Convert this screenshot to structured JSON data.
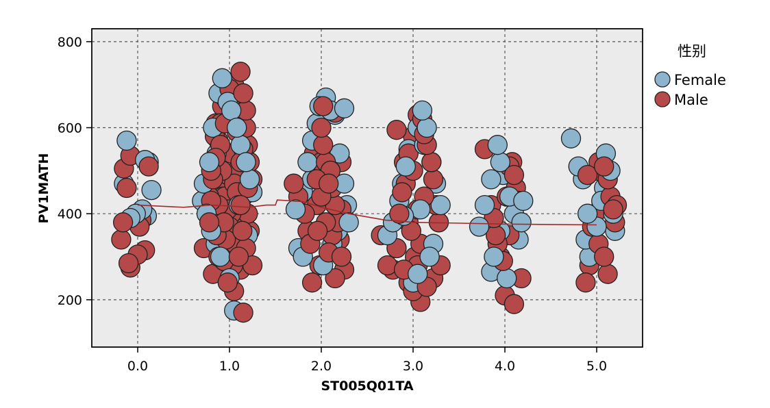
{
  "chart_data": {
    "type": "scatter",
    "title": "",
    "xlabel": "ST005Q01TA",
    "ylabel": "PV1MATH",
    "xlim": [
      -0.5,
      5.5
    ],
    "ylim": [
      90,
      830
    ],
    "x_ticks": [
      "0.0",
      "1.0",
      "2.0",
      "3.0",
      "4.0",
      "5.0"
    ],
    "y_ticks": [
      "200",
      "400",
      "600",
      "800"
    ],
    "grid": true,
    "legend": {
      "title": "性别",
      "placement": "right"
    },
    "series": [
      {
        "name": "Female",
        "color": "#8cb4cc",
        "points": [
          [
            -0.12,
            570
          ],
          [
            -0.15,
            470
          ],
          [
            0.08,
            525
          ],
          [
            0.12,
            520
          ],
          [
            0.15,
            455
          ],
          [
            0.05,
            410
          ],
          [
            -0.02,
            400
          ],
          [
            -0.08,
            390
          ],
          [
            0.1,
            395
          ],
          [
            0.72,
            470
          ],
          [
            0.78,
            520
          ],
          [
            0.82,
            600
          ],
          [
            0.88,
            680
          ],
          [
            0.92,
            715
          ],
          [
            0.95,
            700
          ],
          [
            0.98,
            660
          ],
          [
            1.02,
            640
          ],
          [
            1.08,
            600
          ],
          [
            1.12,
            560
          ],
          [
            1.18,
            520
          ],
          [
            1.22,
            480
          ],
          [
            1.25,
            450
          ],
          [
            0.75,
            400
          ],
          [
            0.8,
            360
          ],
          [
            0.85,
            330
          ],
          [
            0.9,
            300
          ],
          [
            1.05,
            290
          ],
          [
            1.15,
            320
          ],
          [
            1.2,
            350
          ],
          [
            1.0,
            250
          ],
          [
            1.05,
            175
          ],
          [
            0.93,
            440
          ],
          [
            1.1,
            420
          ],
          [
            1.0,
            380
          ],
          [
            0.86,
            540
          ],
          [
            1.16,
            600
          ],
          [
            0.7,
            430
          ],
          [
            1.72,
            410
          ],
          [
            1.8,
            450
          ],
          [
            1.85,
            520
          ],
          [
            1.9,
            570
          ],
          [
            1.95,
            610
          ],
          [
            1.98,
            650
          ],
          [
            2.05,
            670
          ],
          [
            2.1,
            640
          ],
          [
            2.15,
            630
          ],
          [
            2.25,
            645
          ],
          [
            2.2,
            540
          ],
          [
            2.25,
            470
          ],
          [
            2.28,
            420
          ],
          [
            2.3,
            380
          ],
          [
            1.75,
            320
          ],
          [
            1.8,
            300
          ],
          [
            2.02,
            280
          ],
          [
            2.12,
            330
          ],
          [
            1.9,
            480
          ],
          [
            2.18,
            360
          ],
          [
            2.1,
            500
          ],
          [
            2.72,
            350
          ],
          [
            2.78,
            380
          ],
          [
            2.85,
            430
          ],
          [
            2.88,
            470
          ],
          [
            2.92,
            510
          ],
          [
            2.95,
            550
          ],
          [
            3.05,
            600
          ],
          [
            3.1,
            640
          ],
          [
            3.15,
            600
          ],
          [
            3.12,
            560
          ],
          [
            3.2,
            520
          ],
          [
            3.25,
            470
          ],
          [
            3.3,
            420
          ],
          [
            3.28,
            380
          ],
          [
            3.22,
            330
          ],
          [
            3.18,
            300
          ],
          [
            2.82,
            320
          ],
          [
            2.95,
            270
          ],
          [
            3.05,
            260
          ],
          [
            3.0,
            240
          ],
          [
            3.08,
            410
          ],
          [
            2.9,
            395
          ],
          [
            3.72,
            370
          ],
          [
            3.78,
            420
          ],
          [
            3.85,
            480
          ],
          [
            3.92,
            560
          ],
          [
            3.95,
            520
          ],
          [
            3.98,
            490
          ],
          [
            4.05,
            440
          ],
          [
            4.1,
            400
          ],
          [
            4.18,
            380
          ],
          [
            4.2,
            430
          ],
          [
            4.15,
            340
          ],
          [
            3.88,
            300
          ],
          [
            3.85,
            265
          ],
          [
            4.02,
            250
          ],
          [
            3.95,
            360
          ],
          [
            4.72,
            575
          ],
          [
            4.8,
            510
          ],
          [
            4.85,
            480
          ],
          [
            4.9,
            400
          ],
          [
            4.88,
            340
          ],
          [
            4.92,
            300
          ],
          [
            4.95,
            330
          ],
          [
            5.05,
            430
          ],
          [
            5.08,
            460
          ],
          [
            5.12,
            480
          ],
          [
            5.15,
            500
          ],
          [
            5.1,
            540
          ],
          [
            5.18,
            400
          ],
          [
            5.2,
            360
          ],
          [
            5.0,
            370
          ]
        ]
      },
      {
        "name": "Male",
        "color": "#b54848",
        "points": [
          [
            -0.15,
            505
          ],
          [
            -0.12,
            460
          ],
          [
            -0.08,
            535
          ],
          [
            0.12,
            510
          ],
          [
            -0.18,
            340
          ],
          [
            -0.16,
            380
          ],
          [
            0.02,
            370
          ],
          [
            0.04,
            385
          ],
          [
            0.08,
            315
          ],
          [
            0.0,
            305
          ],
          [
            -0.1,
            285
          ],
          [
            -0.08,
            275
          ],
          [
            0.72,
            320
          ],
          [
            0.78,
            380
          ],
          [
            0.8,
            430
          ],
          [
            0.82,
            480
          ],
          [
            0.85,
            530
          ],
          [
            0.88,
            570
          ],
          [
            0.9,
            610
          ],
          [
            0.92,
            650
          ],
          [
            0.95,
            670
          ],
          [
            1.0,
            690
          ],
          [
            1.05,
            700
          ],
          [
            1.12,
            730
          ],
          [
            1.15,
            680
          ],
          [
            1.1,
            640
          ],
          [
            1.18,
            600
          ],
          [
            1.2,
            560
          ],
          [
            1.22,
            520
          ],
          [
            1.25,
            480
          ],
          [
            1.15,
            440
          ],
          [
            1.2,
            400
          ],
          [
            1.22,
            360
          ],
          [
            1.18,
            320
          ],
          [
            1.25,
            280
          ],
          [
            0.98,
            240
          ],
          [
            1.05,
            220
          ],
          [
            1.0,
            260
          ],
          [
            0.82,
            260
          ],
          [
            0.88,
            300
          ],
          [
            1.18,
            640
          ],
          [
            1.0,
            655
          ],
          [
            0.95,
            610
          ],
          [
            1.08,
            590
          ],
          [
            0.85,
            610
          ],
          [
            0.9,
            560
          ],
          [
            1.02,
            540
          ],
          [
            1.12,
            520
          ],
          [
            0.92,
            500
          ],
          [
            0.98,
            490
          ],
          [
            1.05,
            470
          ],
          [
            1.08,
            450
          ],
          [
            0.95,
            440
          ],
          [
            1.12,
            420
          ],
          [
            0.88,
            420
          ],
          [
            0.98,
            410
          ],
          [
            1.02,
            400
          ],
          [
            1.1,
            390
          ],
          [
            0.94,
            380
          ],
          [
            1.0,
            370
          ],
          [
            1.14,
            360
          ],
          [
            0.86,
            350
          ],
          [
            0.96,
            340
          ],
          [
            1.06,
            330
          ],
          [
            0.92,
            320
          ],
          [
            1.02,
            310
          ],
          [
            1.1,
            300
          ],
          [
            0.94,
            290
          ],
          [
            1.04,
            280
          ],
          [
            1.12,
            270
          ],
          [
            0.78,
            440
          ],
          [
            0.8,
            500
          ],
          [
            1.2,
            460
          ],
          [
            1.15,
            170
          ],
          [
            0.82,
            400
          ],
          [
            0.9,
            460
          ],
          [
            1.08,
            500
          ],
          [
            1.15,
            550
          ],
          [
            0.84,
            580
          ],
          [
            1.0,
            620
          ],
          [
            1.7,
            470
          ],
          [
            1.75,
            440
          ],
          [
            1.82,
            400
          ],
          [
            1.85,
            360
          ],
          [
            1.88,
            330
          ],
          [
            1.95,
            480
          ],
          [
            2.0,
            600
          ],
          [
            2.02,
            560
          ],
          [
            2.05,
            520
          ],
          [
            2.1,
            500
          ],
          [
            2.12,
            460
          ],
          [
            2.15,
            420
          ],
          [
            2.18,
            380
          ],
          [
            2.2,
            340
          ],
          [
            2.22,
            300
          ],
          [
            2.25,
            270
          ],
          [
            2.15,
            250
          ],
          [
            1.9,
            240
          ],
          [
            1.98,
            280
          ],
          [
            2.08,
            310
          ],
          [
            2.22,
            410
          ],
          [
            2.02,
            650
          ],
          [
            2.15,
            635
          ],
          [
            2.1,
            530
          ],
          [
            1.92,
            540
          ],
          [
            2.0,
            440
          ],
          [
            2.05,
            380
          ],
          [
            1.95,
            420
          ],
          [
            2.08,
            470
          ],
          [
            2.0,
            520
          ],
          [
            2.22,
            520
          ],
          [
            1.96,
            360
          ],
          [
            2.12,
            350
          ],
          [
            2.65,
            350
          ],
          [
            2.72,
            280
          ],
          [
            2.78,
            270
          ],
          [
            2.82,
            320
          ],
          [
            2.85,
            400
          ],
          [
            2.88,
            450
          ],
          [
            2.9,
            520
          ],
          [
            2.95,
            540
          ],
          [
            3.0,
            580
          ],
          [
            3.05,
            630
          ],
          [
            3.12,
            585
          ],
          [
            3.15,
            560
          ],
          [
            3.2,
            520
          ],
          [
            3.22,
            480
          ],
          [
            3.25,
            420
          ],
          [
            3.28,
            380
          ],
          [
            3.3,
            280
          ],
          [
            3.22,
            250
          ],
          [
            3.15,
            230
          ],
          [
            3.08,
            195
          ],
          [
            3.0,
            220
          ],
          [
            2.95,
            240
          ],
          [
            2.9,
            270
          ],
          [
            3.02,
            300
          ],
          [
            3.08,
            330
          ],
          [
            2.98,
            360
          ],
          [
            3.05,
            410
          ],
          [
            3.12,
            440
          ],
          [
            2.92,
            470
          ],
          [
            3.0,
            500
          ],
          [
            2.82,
            595
          ],
          [
            3.1,
            620
          ],
          [
            2.95,
            380
          ],
          [
            3.05,
            280
          ],
          [
            3.78,
            550
          ],
          [
            3.85,
            420
          ],
          [
            3.88,
            390
          ],
          [
            3.9,
            350
          ],
          [
            3.92,
            330
          ],
          [
            3.95,
            300
          ],
          [
            4.02,
            440
          ],
          [
            4.05,
            510
          ],
          [
            4.08,
            520
          ],
          [
            4.1,
            490
          ],
          [
            4.12,
            460
          ],
          [
            4.15,
            430
          ],
          [
            4.18,
            250
          ],
          [
            4.1,
            190
          ],
          [
            4.0,
            210
          ],
          [
            3.98,
            290
          ],
          [
            4.05,
            350
          ],
          [
            4.88,
            240
          ],
          [
            4.92,
            280
          ],
          [
            4.95,
            370
          ],
          [
            4.98,
            400
          ],
          [
            5.0,
            500
          ],
          [
            5.02,
            520
          ],
          [
            5.08,
            510
          ],
          [
            5.12,
            480
          ],
          [
            5.15,
            440
          ],
          [
            5.18,
            410
          ],
          [
            5.2,
            380
          ],
          [
            5.22,
            420
          ],
          [
            5.12,
            260
          ],
          [
            5.08,
            300
          ],
          [
            5.02,
            330
          ],
          [
            4.9,
            490
          ]
        ]
      }
    ],
    "fit_line": {
      "color": "#a32a2a",
      "points": [
        [
          0,
          420
        ],
        [
          0.5,
          415
        ],
        [
          0.8,
          420
        ],
        [
          1.0,
          418
        ],
        [
          1.2,
          415
        ],
        [
          1.4,
          420
        ],
        [
          1.5,
          420
        ],
        [
          1.52,
          432
        ],
        [
          1.8,
          428
        ],
        [
          2.0,
          415
        ],
        [
          2.3,
          400
        ],
        [
          2.7,
          385
        ],
        [
          2.85,
          383
        ],
        [
          3.0,
          380
        ],
        [
          3.5,
          378
        ],
        [
          4.0,
          376
        ],
        [
          4.5,
          375
        ],
        [
          5.0,
          374
        ]
      ]
    }
  }
}
